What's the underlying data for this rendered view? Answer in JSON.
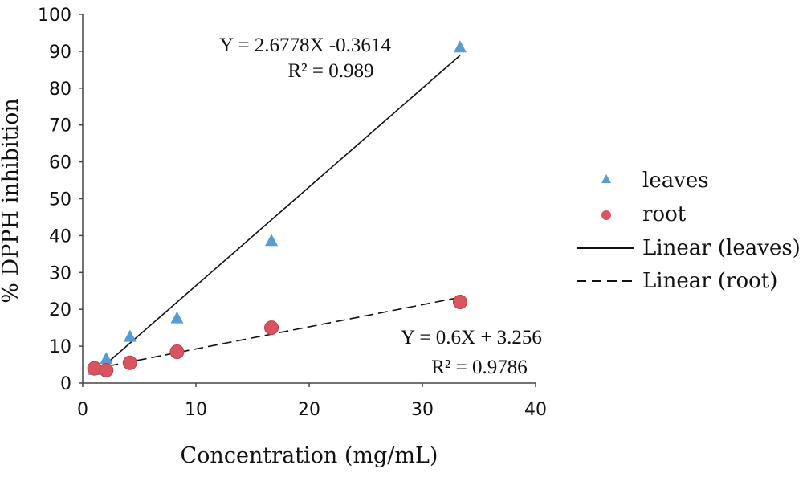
{
  "chart_data": {
    "type": "scatter",
    "xlabel": "Concentration (mg/mL)",
    "ylabel": "% DPPH inhibition",
    "xlim": [
      0,
      40
    ],
    "ylim": [
      0,
      100
    ],
    "x_ticks": [
      0,
      10,
      20,
      30,
      40
    ],
    "y_ticks": [
      0,
      10,
      20,
      30,
      40,
      50,
      60,
      70,
      80,
      90,
      100
    ],
    "grid": false,
    "legend_position": "right",
    "series": [
      {
        "name": "leaves",
        "marker": "triangle",
        "color": "#5b9bd5",
        "x": [
          1.04,
          2.08,
          4.17,
          8.33,
          16.67,
          33.33
        ],
        "y": [
          3.5,
          6.5,
          12.5,
          17.5,
          38.5,
          91
        ]
      },
      {
        "name": "root",
        "marker": "circle",
        "color": "#d9545f",
        "x": [
          1.04,
          2.08,
          4.17,
          8.33,
          16.67,
          33.33
        ],
        "y": [
          4,
          3.5,
          5.5,
          8.5,
          15,
          22
        ]
      }
    ],
    "trendlines": [
      {
        "name": "Linear (leaves)",
        "style": "solid",
        "slope": 2.6778,
        "intercept": -0.3614,
        "x_range": [
          1.04,
          33.33
        ],
        "equation": "Y = 2.6778X -0.3614",
        "r2_label": "R² = 0.989"
      },
      {
        "name": "Linear (root)",
        "style": "dashed",
        "slope": 0.6,
        "intercept": 3.256,
        "x_range": [
          1.04,
          33.33
        ],
        "equation": "Y = 0.6X + 3.256",
        "r2_label": "R² = 0.9786"
      }
    ],
    "legend": [
      "leaves",
      "root",
      "Linear (leaves)",
      "Linear (root)"
    ]
  }
}
